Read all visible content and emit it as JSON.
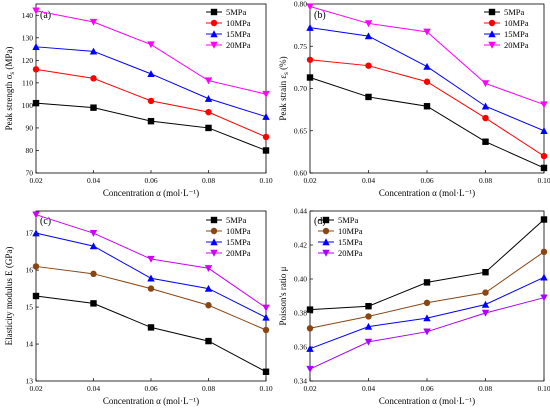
{
  "chart_data": [
    {
      "type": "line",
      "panel": "(a)",
      "xlabel": "Concentration α (mol·L⁻¹)",
      "ylabel": "Peak strength σ_s (MPa)",
      "x": [
        0.02,
        0.04,
        0.06,
        0.08,
        0.1
      ],
      "x_ticks": [
        "0.02",
        "0.04",
        "0.06",
        "0.08",
        "0.10"
      ],
      "xlim": [
        0.02,
        0.1
      ],
      "ylim": [
        70,
        145
      ],
      "y_ticks": [
        "70",
        "80",
        "90",
        "100",
        "110",
        "120",
        "130",
        "140"
      ],
      "y_tick_values": [
        70,
        80,
        90,
        100,
        110,
        120,
        130,
        140
      ],
      "legend_position": "top-right",
      "series": [
        {
          "name": "5MPa",
          "color": "#000000",
          "marker": "square",
          "values": [
            101,
            99,
            93,
            90,
            80
          ]
        },
        {
          "name": "10MPa",
          "color": "#ff0000",
          "marker": "circle",
          "values": [
            116,
            112,
            102,
            97,
            86
          ]
        },
        {
          "name": "15MPa",
          "color": "#0000ff",
          "marker": "triangle-up",
          "values": [
            126,
            124,
            114,
            103,
            95
          ]
        },
        {
          "name": "20MPa",
          "color": "#ff00ff",
          "marker": "triangle-down",
          "values": [
            142,
            137,
            127,
            111,
            105
          ]
        }
      ]
    },
    {
      "type": "line",
      "panel": "(b)",
      "xlabel": "Concentration α (mol·L⁻¹)",
      "ylabel": "Peak strain ε_s (%)",
      "x": [
        0.02,
        0.04,
        0.06,
        0.08,
        0.1
      ],
      "x_ticks": [
        "0.02",
        "0.04",
        "0.06",
        "0.08",
        "0.10"
      ],
      "xlim": [
        0.02,
        0.1
      ],
      "ylim": [
        0.6,
        0.8
      ],
      "y_ticks": [
        "0.60",
        "0.65",
        "0.70",
        "0.75",
        "0.80"
      ],
      "y_tick_values": [
        0.6,
        0.65,
        0.7,
        0.75,
        0.8
      ],
      "legend_position": "top-right",
      "series": [
        {
          "name": "5MPa",
          "color": "#000000",
          "marker": "square",
          "values": [
            0.713,
            0.69,
            0.679,
            0.637,
            0.606
          ]
        },
        {
          "name": "10MPa",
          "color": "#ff0000",
          "marker": "circle",
          "values": [
            0.734,
            0.727,
            0.708,
            0.665,
            0.62
          ]
        },
        {
          "name": "15MPa",
          "color": "#0000ff",
          "marker": "triangle-up",
          "values": [
            0.772,
            0.762,
            0.726,
            0.679,
            0.65
          ]
        },
        {
          "name": "20MPa",
          "color": "#ff00ff",
          "marker": "triangle-down",
          "values": [
            0.797,
            0.777,
            0.767,
            0.706,
            0.681
          ]
        }
      ]
    },
    {
      "type": "line",
      "panel": "(c)",
      "xlabel": "Concentration α (mol·L⁻¹)",
      "ylabel": "Elasticity modulus E (GPa)",
      "x": [
        0.02,
        0.04,
        0.06,
        0.08,
        0.1
      ],
      "x_ticks": [
        "0.02",
        "0.04",
        "0.06",
        "0.08",
        "0.10"
      ],
      "xlim": [
        0.02,
        0.1
      ],
      "ylim": [
        13,
        17.6
      ],
      "y_ticks": [
        "13",
        "14",
        "15",
        "16",
        "17"
      ],
      "y_tick_values": [
        13,
        14,
        15,
        16,
        17
      ],
      "legend_position": "top-right",
      "series": [
        {
          "name": "5MPa",
          "color": "#000000",
          "marker": "square",
          "values": [
            15.3,
            15.1,
            14.45,
            14.08,
            13.25
          ]
        },
        {
          "name": "10MPa",
          "color": "#8b4513",
          "marker": "circle",
          "values": [
            16.1,
            15.9,
            15.5,
            15.05,
            14.38
          ]
        },
        {
          "name": "15MPa",
          "color": "#0000ff",
          "marker": "triangle-up",
          "values": [
            17.0,
            16.65,
            15.78,
            15.5,
            14.72
          ]
        },
        {
          "name": "20MPa",
          "color": "#cc00ff",
          "marker": "triangle-down",
          "values": [
            17.5,
            17.0,
            16.3,
            16.05,
            14.98
          ]
        }
      ]
    },
    {
      "type": "line",
      "panel": "(d)",
      "xlabel": "Concentration α (mol·L⁻¹)",
      "ylabel": "Poisson's ratio μ",
      "x": [
        0.02,
        0.04,
        0.06,
        0.08,
        0.1
      ],
      "x_ticks": [
        "0.02",
        "0.04",
        "0.06",
        "0.08",
        "0.10"
      ],
      "xlim": [
        0.02,
        0.1
      ],
      "ylim": [
        0.34,
        0.44
      ],
      "y_ticks": [
        "0.34",
        "0.36",
        "0.38",
        "0.40",
        "0.42",
        "0.44"
      ],
      "y_tick_values": [
        0.34,
        0.36,
        0.38,
        0.4,
        0.42,
        0.44
      ],
      "legend_position": "top-left",
      "series": [
        {
          "name": "5MPa",
          "color": "#000000",
          "marker": "square",
          "values": [
            0.382,
            0.384,
            0.398,
            0.404,
            0.435
          ]
        },
        {
          "name": "10MPa",
          "color": "#8b4513",
          "marker": "circle",
          "values": [
            0.371,
            0.378,
            0.386,
            0.392,
            0.416
          ]
        },
        {
          "name": "15MPa",
          "color": "#0000ff",
          "marker": "triangle-up",
          "values": [
            0.359,
            0.372,
            0.377,
            0.385,
            0.401
          ]
        },
        {
          "name": "20MPa",
          "color": "#aa00ff",
          "marker": "triangle-down",
          "values": [
            0.347,
            0.363,
            0.369,
            0.38,
            0.389
          ]
        }
      ]
    }
  ]
}
